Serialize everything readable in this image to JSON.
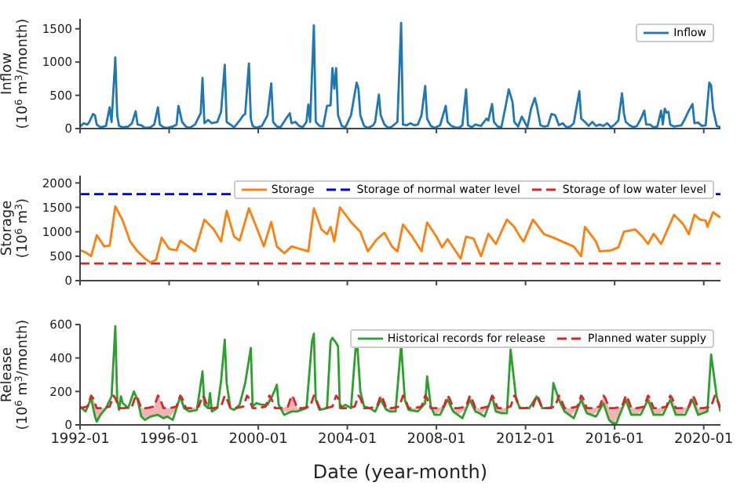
{
  "chart_data": [
    {
      "type": "line",
      "ylabel": "Inflow\n(10$^{6}$ m$^{3}$/month)",
      "xlim": [
        "1992-01",
        "2020-10"
      ],
      "xticks": [
        "1992-01",
        "1996-01",
        "2000-01",
        "2004-01",
        "2008-01",
        "2012-01",
        "2016-01",
        "2020-01"
      ],
      "ylim": [
        0,
        1650
      ],
      "yticks": [
        0,
        500,
        1000,
        1500
      ],
      "tick_labels": "y",
      "legend": "top right",
      "grid": false,
      "series": [
        {
          "name": "Inflow",
          "color": "#1f77b4",
          "line_style": "solid",
          "x": [
            "1992-01",
            "1992-03",
            "1992-05",
            "1992-06",
            "1992-08",
            "1992-09",
            "1992-10",
            "1992-12",
            "1993-03",
            "1993-05",
            "1993-06",
            "1993-08",
            "1993-09",
            "1993-10",
            "1993-12",
            "1994-03",
            "1994-05",
            "1994-07",
            "1994-08",
            "1994-10",
            "1994-12",
            "1995-03",
            "1995-05",
            "1995-07",
            "1995-08",
            "1995-10",
            "1995-12",
            "1996-03",
            "1996-05",
            "1996-06",
            "1996-08",
            "1996-10",
            "1996-12",
            "1997-03",
            "1997-06",
            "1997-07",
            "1997-08",
            "1997-10",
            "1997-12",
            "1998-03",
            "1998-05",
            "1998-07",
            "1998-08",
            "1998-10",
            "1998-12",
            "1999-03",
            "1999-05",
            "1999-06",
            "1999-08",
            "1999-09",
            "1999-10",
            "1999-12",
            "2000-03",
            "2000-06",
            "2000-08",
            "2000-09",
            "2000-11",
            "2001-01",
            "2001-04",
            "2001-06",
            "2001-07",
            "2001-09",
            "2001-11",
            "2002-01",
            "2002-03",
            "2002-04",
            "2002-05",
            "2002-07",
            "2002-08",
            "2002-10",
            "2002-12",
            "2003-02",
            "2003-04",
            "2003-05",
            "2003-06",
            "2003-07",
            "2003-08",
            "2003-10",
            "2003-12",
            "2004-03",
            "2004-06",
            "2004-07",
            "2004-08",
            "2004-10",
            "2004-12",
            "2005-03",
            "2005-04",
            "2005-06",
            "2005-07",
            "2005-09",
            "2005-11",
            "2006-01",
            "2006-04",
            "2006-06",
            "2006-07",
            "2006-09",
            "2006-11",
            "2007-01",
            "2007-03",
            "2007-05",
            "2007-07",
            "2007-08",
            "2007-10",
            "2007-12",
            "2008-03",
            "2008-06",
            "2008-07",
            "2008-09",
            "2008-11",
            "2009-01",
            "2009-03",
            "2009-05",
            "2009-06",
            "2009-08",
            "2009-10",
            "2010-01",
            "2010-04",
            "2010-05",
            "2010-07",
            "2010-08",
            "2010-10",
            "2010-12",
            "2011-02",
            "2011-04",
            "2011-06",
            "2011-07",
            "2011-09",
            "2011-11",
            "2012-02",
            "2012-04",
            "2012-06",
            "2012-07",
            "2012-09",
            "2012-11",
            "2013-01",
            "2013-03",
            "2013-05",
            "2013-07",
            "2013-09",
            "2013-11",
            "2014-01",
            "2014-03",
            "2014-06",
            "2014-07",
            "2014-09",
            "2014-11",
            "2015-01",
            "2015-03",
            "2015-05",
            "2015-07",
            "2015-09",
            "2015-11",
            "2016-01",
            "2016-03",
            "2016-05",
            "2016-06",
            "2016-07",
            "2016-09",
            "2016-11",
            "2017-01",
            "2017-03",
            "2017-05",
            "2017-06",
            "2017-08",
            "2017-10",
            "2017-12",
            "2018-02",
            "2018-03",
            "2018-04",
            "2018-05",
            "2018-06",
            "2018-07",
            "2018-09",
            "2018-11",
            "2019-01",
            "2019-03",
            "2019-05",
            "2019-07",
            "2019-08",
            "2019-10",
            "2019-12",
            "2020-02",
            "2020-04",
            "2020-05",
            "2020-06",
            "2020-08",
            "2020-10"
          ],
          "values": [
            30,
            80,
            60,
            100,
            220,
            200,
            60,
            20,
            40,
            320,
            100,
            1070,
            200,
            40,
            20,
            30,
            80,
            260,
            60,
            50,
            10,
            20,
            60,
            320,
            60,
            20,
            10,
            30,
            60,
            340,
            100,
            30,
            10,
            60,
            230,
            760,
            80,
            130,
            80,
            100,
            250,
            960,
            100,
            60,
            20,
            120,
            200,
            220,
            980,
            150,
            40,
            10,
            40,
            200,
            680,
            100,
            30,
            20,
            150,
            230,
            80,
            100,
            40,
            20,
            100,
            360,
            100,
            1550,
            100,
            40,
            30,
            340,
            350,
            910,
            600,
            910,
            200,
            40,
            20,
            200,
            690,
            600,
            200,
            40,
            10,
            50,
            100,
            510,
            200,
            60,
            10,
            30,
            100,
            1590,
            60,
            50,
            80,
            50,
            60,
            200,
            640,
            150,
            40,
            10,
            50,
            340,
            100,
            40,
            20,
            10,
            50,
            590,
            50,
            20,
            60,
            40,
            150,
            120,
            370,
            100,
            30,
            20,
            300,
            590,
            400,
            100,
            30,
            180,
            20,
            300,
            460,
            350,
            50,
            30,
            40,
            220,
            200,
            50,
            80,
            20,
            30,
            80,
            560,
            150,
            100,
            40,
            100,
            40,
            60,
            40,
            80,
            20,
            60,
            120,
            530,
            230,
            100,
            50,
            20,
            40,
            140,
            270,
            60,
            60,
            20,
            30,
            270,
            60,
            300,
            240,
            250,
            60,
            30,
            40,
            50,
            150,
            270,
            370,
            80,
            90,
            40,
            50,
            690,
            650,
            300,
            40,
            20
          ]
        }
      ]
    },
    {
      "type": "line",
      "ylabel": "Storage\n(10$^{6}$ m$^{3}$)",
      "xlim": [
        "1992-01",
        "2020-10"
      ],
      "xticks": [
        "1992-01",
        "1996-01",
        "2000-01",
        "2004-01",
        "2008-01",
        "2012-01",
        "2016-01",
        "2020-01"
      ],
      "ylim": [
        0,
        2150
      ],
      "yticks": [
        0,
        500,
        1000,
        1500,
        2000
      ],
      "tick_labels": "y",
      "legend": "top right",
      "grid": false,
      "ref_lines": [
        {
          "axis": "y",
          "value": 1770,
          "label": "Storage of normal water level",
          "color": "#0000cc",
          "line_style": "dashed"
        },
        {
          "axis": "y",
          "value": 350,
          "label": "Storage of low water level",
          "color": "#d62728",
          "line_style": "dashed"
        }
      ],
      "series": [
        {
          "name": "Storage",
          "color": "#ff7f0e",
          "line_style": "solid",
          "x": [
            "1992-01",
            "1992-04",
            "1992-07",
            "1992-10",
            "1993-02",
            "1993-05",
            "1993-08",
            "1993-12",
            "1994-04",
            "1994-08",
            "1994-12",
            "1995-03",
            "1995-06",
            "1995-09",
            "1996-01",
            "1996-05",
            "1996-07",
            "1997-03",
            "1997-08",
            "1998-01",
            "1998-05",
            "1998-08",
            "1998-12",
            "1999-03",
            "1999-08",
            "2000-01",
            "2000-04",
            "2000-08",
            "2000-11",
            "2001-03",
            "2001-07",
            "2002-04",
            "2002-07",
            "2002-11",
            "2003-02",
            "2003-04",
            "2003-06",
            "2003-09",
            "2004-03",
            "2004-08",
            "2004-12",
            "2005-05",
            "2005-09",
            "2006-01",
            "2006-04",
            "2006-07",
            "2006-12",
            "2007-05",
            "2007-08",
            "2008-01",
            "2008-04",
            "2008-07",
            "2009-02",
            "2009-05",
            "2009-09",
            "2010-01",
            "2010-05",
            "2010-09",
            "2011-03",
            "2011-07",
            "2011-10",
            "2011-12",
            "2012-05",
            "2012-11",
            "2013-04",
            "2013-10",
            "2014-03",
            "2014-07",
            "2014-09",
            "2015-03",
            "2015-05",
            "2015-11",
            "2016-03",
            "2016-06",
            "2016-12",
            "2017-04",
            "2017-07",
            "2017-10",
            "2018-02",
            "2018-05",
            "2018-09",
            "2019-02",
            "2019-05",
            "2019-08",
            "2019-11",
            "2020-02",
            "2020-03",
            "2020-06",
            "2020-10"
          ],
          "values": [
            620,
            580,
            500,
            930,
            700,
            720,
            1520,
            1230,
            800,
            600,
            450,
            370,
            430,
            880,
            650,
            620,
            820,
            600,
            1250,
            1050,
            800,
            1430,
            900,
            820,
            1480,
            1000,
            700,
            1200,
            700,
            560,
            700,
            600,
            1480,
            1050,
            950,
            1100,
            800,
            1500,
            1200,
            1000,
            600,
            850,
            980,
            700,
            600,
            1150,
            900,
            600,
            1190,
            900,
            680,
            850,
            450,
            900,
            860,
            500,
            960,
            750,
            1250,
            1100,
            900,
            800,
            1250,
            950,
            880,
            780,
            700,
            500,
            1100,
            800,
            600,
            620,
            680,
            1000,
            1050,
            900,
            750,
            960,
            750,
            1000,
            1350,
            1150,
            950,
            1350,
            1250,
            1230,
            1100,
            1400,
            1290
          ]
        }
      ]
    },
    {
      "type": "line",
      "ylabel": "Release\n(10$^{6}$ m$^{3}$/month)",
      "xlabel": "Date (year-month)",
      "xlim": [
        "1992-01",
        "2020-10"
      ],
      "xticks": [
        "1992-01",
        "1996-01",
        "2000-01",
        "2004-01",
        "2008-01",
        "2012-01",
        "2016-01",
        "2020-01"
      ],
      "ylim": [
        0,
        600
      ],
      "yticks": [
        0,
        200,
        400,
        600
      ],
      "legend": "top right",
      "grid": false,
      "series": [
        {
          "name": "Historical records for release",
          "color": "#2ca02c",
          "line_style": "solid",
          "x": [
            "1992-01",
            "1992-04",
            "1992-07",
            "1992-09",
            "1992-10",
            "1992-12",
            "1993-03",
            "1993-06",
            "1993-08",
            "1993-09",
            "1993-10",
            "1993-11",
            "1993-12",
            "1994-03",
            "1994-06",
            "1994-08",
            "1994-10",
            "1994-12",
            "1995-03",
            "1995-07",
            "1995-10",
            "1995-12",
            "1996-03",
            "1996-07",
            "1996-09",
            "1996-12",
            "1997-04",
            "1997-07",
            "1997-08",
            "1997-10",
            "1997-11",
            "1997-12",
            "1998-03",
            "1998-05",
            "1998-07",
            "1998-08",
            "1998-10",
            "1998-12",
            "1999-03",
            "1999-06",
            "1999-09",
            "1999-10",
            "1999-12",
            "2000-03",
            "2000-06",
            "2000-08",
            "2000-10",
            "2000-11",
            "2000-12",
            "2001-03",
            "2001-07",
            "2001-10",
            "2002-03",
            "2002-06",
            "2002-07",
            "2002-08",
            "2002-10",
            "2003-02",
            "2003-04",
            "2003-05",
            "2003-07",
            "2003-08",
            "2003-09",
            "2003-12",
            "2004-03",
            "2004-06",
            "2004-08",
            "2004-10",
            "2005-01",
            "2005-04",
            "2005-07",
            "2005-10",
            "2005-12",
            "2006-03",
            "2006-06",
            "2006-08",
            "2006-10",
            "2007-03",
            "2007-07",
            "2007-08",
            "2007-10",
            "2007-12",
            "2008-03",
            "2008-07",
            "2008-10",
            "2009-03",
            "2009-07",
            "2009-10",
            "2009-12",
            "2010-03",
            "2010-07",
            "2010-09",
            "2010-12",
            "2011-03",
            "2011-05",
            "2011-08",
            "2011-10",
            "2012-03",
            "2012-07",
            "2012-10",
            "2013-03",
            "2013-04",
            "2013-07",
            "2013-10",
            "2014-03",
            "2014-07",
            "2014-10",
            "2015-03",
            "2015-07",
            "2015-10",
            "2015-12",
            "2016-02",
            "2016-03",
            "2016-07",
            "2016-10",
            "2017-03",
            "2017-07",
            "2017-10",
            "2018-03",
            "2018-07",
            "2018-10",
            "2019-03",
            "2019-07",
            "2019-10",
            "2020-03",
            "2020-05",
            "2020-08",
            "2020-10"
          ],
          "values": [
            110,
            80,
            160,
            50,
            20,
            60,
            100,
            170,
            590,
            150,
            90,
            170,
            130,
            100,
            200,
            150,
            50,
            30,
            50,
            60,
            40,
            50,
            30,
            170,
            100,
            80,
            90,
            320,
            120,
            100,
            190,
            80,
            100,
            260,
            510,
            250,
            100,
            90,
            120,
            250,
            460,
            110,
            130,
            120,
            120,
            160,
            210,
            240,
            120,
            60,
            80,
            80,
            100,
            500,
            545,
            150,
            90,
            100,
            500,
            520,
            490,
            470,
            100,
            120,
            100,
            540,
            200,
            110,
            100,
            80,
            150,
            90,
            80,
            80,
            480,
            150,
            90,
            80,
            130,
            290,
            110,
            60,
            60,
            150,
            80,
            40,
            150,
            80,
            70,
            50,
            170,
            80,
            70,
            70,
            450,
            150,
            100,
            100,
            170,
            100,
            100,
            250,
            150,
            80,
            40,
            150,
            70,
            50,
            130,
            30,
            10,
            10,
            40,
            150,
            60,
            60,
            150,
            60,
            60,
            150,
            60,
            60,
            150,
            60,
            80,
            420,
            170,
            80
          ]
        },
        {
          "name": "Planned water supply",
          "color": "#d62728",
          "line_style": "dashed",
          "x": [
            "1992-01",
            "1992-05",
            "1992-07",
            "1992-08",
            "1992-10",
            "1993-01",
            "1993-05",
            "1993-07",
            "1993-08",
            "1993-10",
            "1994-01",
            "1994-05",
            "1994-07",
            "1994-08",
            "1994-10",
            "1995-01",
            "1995-05",
            "1995-07",
            "1995-08",
            "1995-10",
            "1996-01",
            "1996-05",
            "1996-07",
            "1996-08",
            "1996-10",
            "1997-01",
            "1997-05",
            "1997-07",
            "1997-08",
            "1997-10",
            "1998-01",
            "1998-05",
            "1998-07",
            "1998-08",
            "1998-10",
            "1999-01",
            "1999-05",
            "1999-07",
            "1999-08",
            "1999-10",
            "2000-01",
            "2000-05",
            "2000-07",
            "2000-08",
            "2000-10",
            "2001-01",
            "2001-05",
            "2001-07",
            "2001-08",
            "2001-10",
            "2002-01",
            "2002-05",
            "2002-07",
            "2002-08",
            "2002-10",
            "2003-01",
            "2003-05",
            "2003-07",
            "2003-08",
            "2003-10",
            "2004-01",
            "2004-05",
            "2004-07",
            "2004-08",
            "2004-10",
            "2005-01",
            "2005-05",
            "2005-07",
            "2005-08",
            "2005-10",
            "2006-01",
            "2006-05",
            "2006-07",
            "2006-08",
            "2006-10",
            "2007-01",
            "2007-05",
            "2007-07",
            "2007-08",
            "2007-10",
            "2008-01",
            "2008-05",
            "2008-07",
            "2008-08",
            "2008-10",
            "2009-01",
            "2009-05",
            "2009-07",
            "2009-08",
            "2009-10",
            "2010-01",
            "2010-05",
            "2010-07",
            "2010-08",
            "2010-10",
            "2011-01",
            "2011-05",
            "2011-07",
            "2011-08",
            "2011-10",
            "2012-01",
            "2012-05",
            "2012-07",
            "2012-08",
            "2012-10",
            "2013-01",
            "2013-05",
            "2013-07",
            "2013-08",
            "2013-10",
            "2014-01",
            "2014-05",
            "2014-07",
            "2014-08",
            "2014-10",
            "2015-01",
            "2015-05",
            "2015-07",
            "2015-08",
            "2015-10",
            "2016-01",
            "2016-05",
            "2016-07",
            "2016-08",
            "2016-10",
            "2017-01",
            "2017-05",
            "2017-07",
            "2017-08",
            "2017-10",
            "2018-01",
            "2018-05",
            "2018-07",
            "2018-08",
            "2018-10",
            "2019-01",
            "2019-05",
            "2019-07",
            "2019-08",
            "2019-10",
            "2020-01",
            "2020-05",
            "2020-07",
            "2020-08",
            "2020-10"
          ],
          "values": [
            100,
            110,
            175,
            160,
            100,
            100,
            110,
            175,
            160,
            100,
            100,
            110,
            175,
            160,
            100,
            100,
            110,
            175,
            160,
            100,
            100,
            110,
            175,
            160,
            100,
            100,
            110,
            175,
            160,
            100,
            100,
            110,
            175,
            160,
            100,
            100,
            110,
            175,
            160,
            100,
            100,
            110,
            175,
            160,
            100,
            100,
            110,
            175,
            160,
            100,
            100,
            110,
            175,
            160,
            100,
            100,
            110,
            175,
            160,
            100,
            100,
            110,
            175,
            160,
            100,
            100,
            110,
            175,
            160,
            100,
            100,
            110,
            175,
            160,
            100,
            100,
            110,
            175,
            160,
            100,
            100,
            110,
            175,
            160,
            100,
            100,
            110,
            175,
            160,
            100,
            100,
            110,
            175,
            160,
            100,
            100,
            110,
            175,
            160,
            100,
            100,
            110,
            175,
            160,
            100,
            100,
            110,
            175,
            160,
            100,
            100,
            110,
            175,
            160,
            100,
            100,
            110,
            175,
            160,
            100,
            100,
            110,
            175,
            160,
            100,
            100,
            110,
            175,
            160,
            100,
            100,
            110,
            175,
            160,
            100,
            100,
            110,
            175,
            160,
            100,
            100,
            110,
            175,
            160,
            100
          ],
          "lower": [
            100,
            105,
            160,
            100,
            20,
            80,
            110,
            175,
            160,
            90,
            100,
            110,
            175,
            150,
            50,
            40,
            55,
            60,
            53,
            40,
            40,
            100,
            170,
            135,
            95,
            85,
            110,
            175,
            120,
            100,
            95,
            110,
            175,
            160,
            100,
            100,
            110,
            175,
            160,
            100,
            100,
            110,
            140,
            160,
            100,
            90,
            73,
            80,
            80,
            80,
            90,
            110,
            175,
            150,
            90,
            100,
            110,
            175,
            160,
            90,
            100,
            110,
            175,
            160,
            100,
            100,
            105,
            150,
            130,
            90,
            82,
            110,
            175,
            150,
            90,
            85,
            105,
            130,
            160,
            100,
            63,
            100,
            150,
            125,
            80,
            65,
            95,
            150,
            125,
            80,
            60,
            110,
            170,
            125,
            77,
            70,
            110,
            175,
            150,
            100,
            100,
            110,
            170,
            145,
            100,
            100,
            110,
            150,
            125,
            80,
            53,
            95,
            150,
            125,
            70,
            60,
            90,
            130,
            100,
            30,
            10,
            95,
            150,
            120,
            60,
            60,
            105,
            150,
            120,
            60,
            60,
            105,
            150,
            120,
            60,
            60,
            105,
            150,
            120,
            60,
            70,
            110,
            175,
            160,
            80
          ],
          "upper": [
            100,
            110,
            175,
            160,
            100,
            100,
            110,
            175,
            160,
            100,
            100,
            110,
            175,
            160,
            100,
            100,
            110,
            175,
            160,
            100,
            100,
            110,
            175,
            160,
            100,
            100,
            110,
            175,
            160,
            100,
            100,
            110,
            175,
            160,
            100,
            100,
            110,
            175,
            160,
            100,
            100,
            110,
            175,
            160,
            100,
            100,
            110,
            175,
            160,
            100,
            100,
            110,
            175,
            160,
            100,
            100,
            110,
            175,
            160,
            100,
            100,
            110,
            175,
            160,
            100,
            100,
            110,
            175,
            160,
            100,
            100,
            110,
            175,
            160,
            100,
            100,
            110,
            175,
            160,
            100,
            100,
            110,
            175,
            160,
            100,
            100,
            110,
            175,
            160,
            100,
            100,
            110,
            175,
            160,
            100,
            100,
            110,
            175,
            160,
            100,
            100,
            110,
            175,
            160,
            100,
            100,
            110,
            175,
            160,
            100,
            100,
            110,
            175,
            160,
            100,
            100,
            110,
            175,
            160,
            100,
            100,
            110,
            175,
            160,
            100,
            100,
            110,
            175,
            160,
            100,
            100,
            110,
            175,
            160,
            100,
            100,
            110,
            175,
            160,
            100,
            100,
            110,
            175,
            160,
            100
          ]
        }
      ]
    }
  ]
}
